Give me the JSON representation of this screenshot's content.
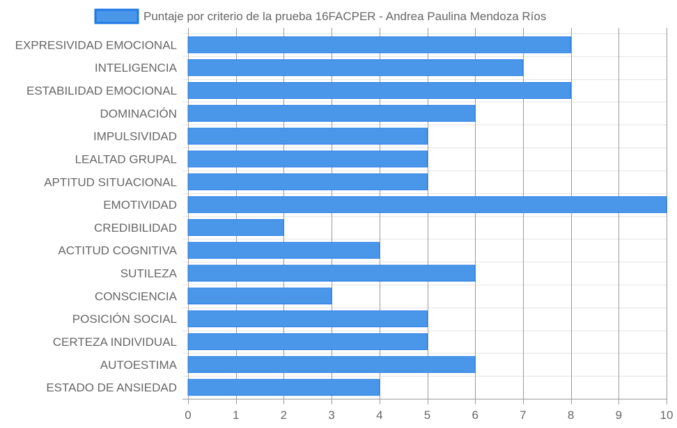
{
  "chart_data": {
    "type": "bar",
    "orientation": "horizontal",
    "categories": [
      "EXPRESIVIDAD EMOCIONAL",
      "INTELIGENCIA",
      "ESTABILIDAD EMOCIONAL",
      "DOMINACIÓN",
      "IMPULSIVIDAD",
      "LEALTAD GRUPAL",
      "APTITUD SITUACIONAL",
      "EMOTIVIDAD",
      "CREDIBILIDAD",
      "ACTITUD COGNITIVA",
      "SUTILEZA",
      "CONSCIENCIA",
      "POSICIÓN SOCIAL",
      "CERTEZA INDIVIDUAL",
      "AUTOESTIMA",
      "ESTADO DE ANSIEDAD"
    ],
    "series": [
      {
        "name": "Puntaje por criterio de la prueba 16FACPER - Andrea Paulina Mendoza Ríos",
        "values": [
          8,
          7,
          8,
          6,
          5,
          5,
          5,
          10,
          2,
          4,
          6,
          3,
          5,
          5,
          6,
          4
        ]
      }
    ],
    "xlim": [
      0,
      10
    ],
    "xticks": [
      "0",
      "1",
      "2",
      "3",
      "4",
      "5",
      "6",
      "7",
      "8",
      "9",
      "10"
    ],
    "grid": true,
    "legend_position": "top",
    "colors": {
      "bar_fill": "#4a97ea",
      "bar_border": "#1f78e5",
      "grid": "#e4e4e4",
      "grid_strong": "#999999",
      "text": "#666666"
    }
  }
}
